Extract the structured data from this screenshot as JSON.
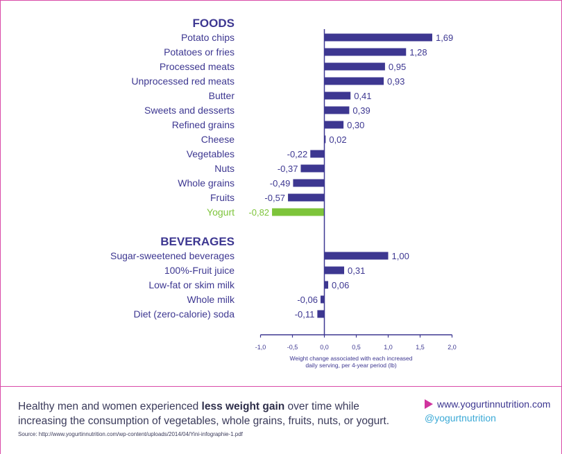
{
  "colors": {
    "bar": "#3d3791",
    "highlight": "#7dc43a",
    "text": "#3d3791",
    "frame": "#d94aa8",
    "arrow": "#d0349e",
    "social": "#3aa9d6"
  },
  "chart_data": {
    "type": "bar",
    "orientation": "horizontal",
    "xlim": [
      -1.0,
      2.0
    ],
    "x_ticks": [
      "-1,0",
      "-0,5",
      "0,0",
      "0,5",
      "1,0",
      "1,5",
      "2,0"
    ],
    "x_tick_values": [
      -1.0,
      -0.5,
      0.0,
      0.5,
      1.0,
      1.5,
      2.0
    ],
    "xlabel_lines": [
      "Weight change associated with each increased",
      "daily serving, per 4-year period (lb)"
    ],
    "groups": [
      {
        "title": "FOODS",
        "items": [
          {
            "label": "Potato chips",
            "value": 1.69,
            "display": "1,69"
          },
          {
            "label": "Potatoes or fries",
            "value": 1.28,
            "display": "1,28"
          },
          {
            "label": "Processed meats",
            "value": 0.95,
            "display": "0,95"
          },
          {
            "label": "Unprocessed red meats",
            "value": 0.93,
            "display": "0,93"
          },
          {
            "label": "Butter",
            "value": 0.41,
            "display": "0,41"
          },
          {
            "label": "Sweets and desserts",
            "value": 0.39,
            "display": "0,39"
          },
          {
            "label": "Refined grains",
            "value": 0.3,
            "display": "0,30"
          },
          {
            "label": "Cheese",
            "value": 0.02,
            "display": "0,02"
          },
          {
            "label": "Vegetables",
            "value": -0.22,
            "display": "-0,22"
          },
          {
            "label": "Nuts",
            "value": -0.37,
            "display": "-0,37"
          },
          {
            "label": "Whole grains",
            "value": -0.49,
            "display": "-0,49"
          },
          {
            "label": "Fruits",
            "value": -0.57,
            "display": "-0,57"
          },
          {
            "label": "Yogurt",
            "value": -0.82,
            "display": "-0,82",
            "highlight": true
          }
        ]
      },
      {
        "title": "BEVERAGES",
        "items": [
          {
            "label": "Sugar-sweetened beverages",
            "value": 1.0,
            "display": "1,00"
          },
          {
            "label": "100%-Fruit juice",
            "value": 0.31,
            "display": "0,31"
          },
          {
            "label": "Low-fat or skim milk",
            "value": 0.06,
            "display": "0,06"
          },
          {
            "label": "Whole milk",
            "value": -0.06,
            "display": "-0,06"
          },
          {
            "label": "Diet (zero-calorie) soda",
            "value": -0.11,
            "display": "-0,11"
          }
        ]
      }
    ]
  },
  "footer": {
    "text_before": "Healthy men and women experienced ",
    "text_bold": "less weight gain",
    "text_after": " over time while increasing the consumption of vegetables, whole grains, fruits, nuts, or yogurt.",
    "source": "Source: http://www.yogurtinnutrition.com/wp-content/uploads/2014/04/Yini-infographie-1.pdf",
    "website": "www.yogurtinnutrition.com",
    "social": "@yogurtnutrition"
  }
}
